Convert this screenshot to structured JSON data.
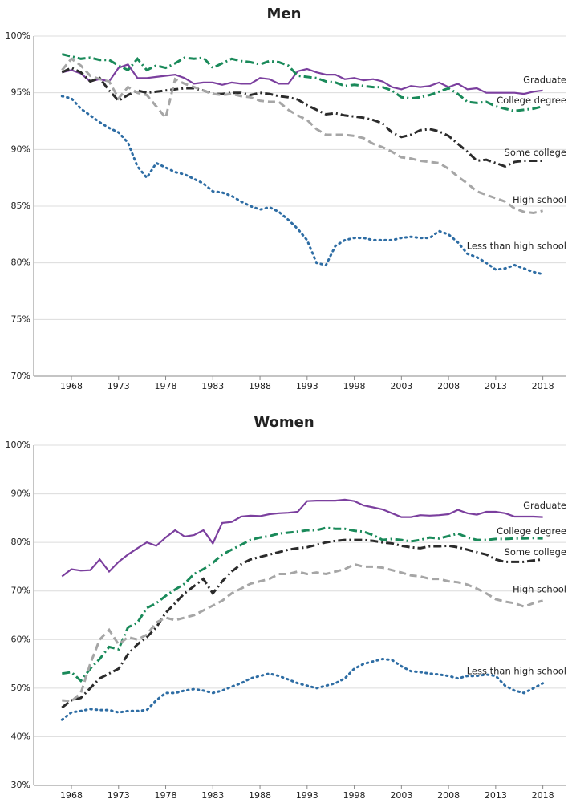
{
  "chart_data": [
    {
      "type": "line",
      "title": "Men",
      "x": [
        1967,
        1968,
        1969,
        1970,
        1971,
        1972,
        1973,
        1974,
        1975,
        1976,
        1977,
        1978,
        1979,
        1980,
        1981,
        1982,
        1983,
        1984,
        1985,
        1986,
        1987,
        1988,
        1989,
        1990,
        1991,
        1992,
        1993,
        1994,
        1995,
        1996,
        1997,
        1998,
        1999,
        2000,
        2001,
        2002,
        2003,
        2004,
        2005,
        2006,
        2007,
        2008,
        2009,
        2010,
        2011,
        2012,
        2013,
        2014,
        2015,
        2016,
        2017,
        2018
      ],
      "xlim": [
        1964,
        2020.5
      ],
      "xticks": [
        1968,
        1973,
        1978,
        1983,
        1988,
        1993,
        1998,
        2003,
        2008,
        2013,
        2018
      ],
      "ylim": [
        70,
        100
      ],
      "yticks": [
        {
          "value": 70,
          "label": "70%"
        },
        {
          "value": 75,
          "label": "75%"
        },
        {
          "value": 80,
          "label": "80%"
        },
        {
          "value": 85,
          "label": "85%"
        },
        {
          "value": 90,
          "label": "90%"
        },
        {
          "value": 95,
          "label": "95%"
        },
        {
          "value": 100,
          "label": "100%"
        }
      ],
      "grid": true,
      "series": [
        {
          "name": "Graduate",
          "color": "#7b3f9e",
          "style": "solid",
          "values": [
            96.8,
            97.0,
            96.7,
            96.0,
            96.2,
            96.0,
            97.2,
            97.5,
            96.3,
            96.3,
            96.4,
            96.5,
            96.6,
            96.3,
            95.8,
            95.9,
            95.9,
            95.7,
            95.9,
            95.8,
            95.8,
            96.3,
            96.2,
            95.8,
            95.8,
            96.9,
            97.1,
            96.8,
            96.6,
            96.6,
            96.2,
            96.3,
            96.1,
            96.2,
            96.0,
            95.5,
            95.3,
            95.6,
            95.5,
            95.6,
            95.9,
            95.5,
            95.8,
            95.3,
            95.4,
            95.0,
            95.0,
            95.0,
            95.0,
            94.9,
            95.1,
            95.2
          ]
        },
        {
          "name": "College degree",
          "color": "#1a8a5a",
          "style": "dashdot",
          "values": [
            98.4,
            98.2,
            98.0,
            98.1,
            97.9,
            97.9,
            97.4,
            97.0,
            98.0,
            97.0,
            97.4,
            97.2,
            97.6,
            98.1,
            98.0,
            98.1,
            97.2,
            97.6,
            98.0,
            97.8,
            97.7,
            97.5,
            97.8,
            97.7,
            97.4,
            96.5,
            96.4,
            96.3,
            96.0,
            95.9,
            95.6,
            95.7,
            95.6,
            95.5,
            95.5,
            95.2,
            94.6,
            94.5,
            94.6,
            94.8,
            95.1,
            95.4,
            94.9,
            94.2,
            94.1,
            94.2,
            93.8,
            93.6,
            93.4,
            93.5,
            93.6,
            93.8
          ]
        },
        {
          "name": "Some college",
          "color": "#2b2b2b",
          "style": "dashdot",
          "values": [
            96.8,
            97.2,
            96.8,
            96.0,
            96.3,
            95.2,
            94.3,
            94.8,
            95.2,
            95.0,
            95.1,
            95.2,
            95.3,
            95.4,
            95.4,
            95.2,
            94.9,
            94.9,
            95.0,
            95.0,
            94.8,
            95.0,
            94.9,
            94.7,
            94.6,
            94.4,
            93.9,
            93.5,
            93.1,
            93.2,
            93.0,
            92.9,
            92.8,
            92.6,
            92.3,
            91.5,
            91.1,
            91.3,
            91.7,
            91.8,
            91.6,
            91.2,
            90.5,
            89.8,
            89.0,
            89.1,
            88.8,
            88.5,
            88.9,
            89.0,
            89.0,
            89.0
          ]
        },
        {
          "name": "High school",
          "color": "#a6a6a6",
          "style": "dashed",
          "values": [
            97.0,
            98.0,
            97.4,
            96.5,
            96.2,
            96.0,
            94.5,
            95.5,
            95.0,
            94.8,
            93.8,
            92.8,
            96.2,
            95.8,
            95.5,
            95.2,
            94.9,
            94.8,
            94.9,
            94.7,
            94.6,
            94.3,
            94.2,
            94.2,
            93.5,
            93.0,
            92.6,
            91.8,
            91.3,
            91.3,
            91.3,
            91.2,
            91.0,
            90.5,
            90.2,
            89.8,
            89.3,
            89.2,
            89.0,
            88.9,
            88.8,
            88.3,
            87.6,
            87.0,
            86.3,
            86.0,
            85.7,
            85.4,
            84.8,
            84.5,
            84.4,
            84.6
          ]
        },
        {
          "name": "Less than high school",
          "color": "#2e6da4",
          "style": "dotted",
          "values": [
            94.7,
            94.5,
            93.6,
            93.0,
            92.4,
            91.9,
            91.5,
            90.6,
            88.5,
            87.5,
            88.8,
            88.4,
            88.0,
            87.8,
            87.4,
            87.0,
            86.3,
            86.2,
            85.9,
            85.4,
            85.0,
            84.7,
            84.9,
            84.5,
            83.8,
            83.0,
            82.0,
            80.0,
            79.8,
            81.5,
            82.0,
            82.2,
            82.2,
            82.0,
            82.0,
            82.0,
            82.2,
            82.3,
            82.2,
            82.2,
            82.8,
            82.5,
            81.8,
            80.8,
            80.5,
            80.0,
            79.4,
            79.5,
            79.8,
            79.5,
            79.2,
            79.0
          ]
        }
      ]
    },
    {
      "type": "line",
      "title": "Women",
      "x": [
        1967,
        1968,
        1969,
        1970,
        1971,
        1972,
        1973,
        1974,
        1975,
        1976,
        1977,
        1978,
        1979,
        1980,
        1981,
        1982,
        1983,
        1984,
        1985,
        1986,
        1987,
        1988,
        1989,
        1990,
        1991,
        1992,
        1993,
        1994,
        1995,
        1996,
        1997,
        1998,
        1999,
        2000,
        2001,
        2002,
        2003,
        2004,
        2005,
        2006,
        2007,
        2008,
        2009,
        2010,
        2011,
        2012,
        2013,
        2014,
        2015,
        2016,
        2017,
        2018
      ],
      "xlim": [
        1964,
        2020.5
      ],
      "xticks": [
        1968,
        1973,
        1978,
        1983,
        1988,
        1993,
        1998,
        2003,
        2008,
        2013,
        2018
      ],
      "ylim": [
        30,
        100
      ],
      "yticks": [
        {
          "value": 30,
          "label": "30%"
        },
        {
          "value": 40,
          "label": "40%"
        },
        {
          "value": 50,
          "label": "50%"
        },
        {
          "value": 60,
          "label": "60%"
        },
        {
          "value": 70,
          "label": "70%"
        },
        {
          "value": 80,
          "label": "80%"
        },
        {
          "value": 90,
          "label": "90%"
        },
        {
          "value": 100,
          "label": "100%"
        }
      ],
      "grid": true,
      "series": [
        {
          "name": "Graduate",
          "color": "#7b3f9e",
          "style": "solid",
          "values": [
            73.0,
            74.5,
            74.2,
            74.3,
            76.5,
            74.0,
            76.0,
            77.5,
            78.8,
            80.0,
            79.3,
            81.0,
            82.5,
            81.2,
            81.5,
            82.5,
            79.8,
            84.0,
            84.2,
            85.3,
            85.5,
            85.4,
            85.8,
            86.0,
            86.1,
            86.3,
            88.5,
            88.6,
            88.6,
            88.6,
            88.8,
            88.5,
            87.6,
            87.2,
            86.8,
            86.0,
            85.2,
            85.2,
            85.6,
            85.5,
            85.6,
            85.8,
            86.7,
            86.0,
            85.7,
            86.3,
            86.3,
            86.0,
            85.3,
            85.3,
            85.3,
            85.2
          ]
        },
        {
          "name": "College degree",
          "color": "#1a8a5a",
          "style": "dashdot",
          "values": [
            53.0,
            53.3,
            51.5,
            54.0,
            56.0,
            58.5,
            58.0,
            62.5,
            63.5,
            66.5,
            67.5,
            69.0,
            70.3,
            71.5,
            73.5,
            74.5,
            75.8,
            77.5,
            78.5,
            79.5,
            80.5,
            81.0,
            81.3,
            81.8,
            82.0,
            82.2,
            82.5,
            82.5,
            83.0,
            82.8,
            82.8,
            82.4,
            82.2,
            81.5,
            80.5,
            80.7,
            80.5,
            80.2,
            80.5,
            81.0,
            80.8,
            81.3,
            81.8,
            81.0,
            80.5,
            80.5,
            80.7,
            80.7,
            80.8,
            80.8,
            80.9,
            80.8
          ]
        },
        {
          "name": "Some college",
          "color": "#2b2b2b",
          "style": "dashdot",
          "values": [
            46.0,
            47.5,
            48.0,
            50.0,
            52.0,
            53.0,
            54.0,
            57.0,
            59.0,
            60.5,
            62.5,
            65.5,
            67.5,
            69.5,
            71.0,
            72.5,
            69.5,
            72.0,
            74.0,
            75.5,
            76.5,
            77.0,
            77.5,
            78.0,
            78.5,
            78.8,
            79.0,
            79.5,
            80.0,
            80.3,
            80.5,
            80.5,
            80.5,
            80.3,
            80.0,
            79.8,
            79.3,
            79.0,
            78.8,
            79.2,
            79.2,
            79.3,
            79.0,
            78.5,
            78.0,
            77.5,
            76.5,
            76.0,
            76.0,
            76.0,
            76.3,
            76.5
          ]
        },
        {
          "name": "High school",
          "color": "#a6a6a6",
          "style": "dashed",
          "values": [
            47.5,
            47.3,
            49.0,
            55.0,
            60.0,
            62.0,
            59.0,
            60.5,
            60.0,
            61.0,
            63.5,
            64.5,
            64.0,
            64.5,
            65.0,
            66.0,
            67.0,
            68.0,
            69.5,
            70.5,
            71.5,
            72.0,
            72.5,
            73.5,
            73.5,
            74.0,
            73.5,
            73.8,
            73.5,
            74.0,
            74.5,
            75.5,
            75.0,
            75.0,
            74.8,
            74.3,
            73.8,
            73.2,
            73.0,
            72.5,
            72.5,
            72.0,
            71.8,
            71.3,
            70.5,
            69.5,
            68.3,
            67.8,
            67.5,
            66.8,
            67.5,
            68.0
          ]
        },
        {
          "name": "Less than high school",
          "color": "#2e6da4",
          "style": "dotted",
          "values": [
            43.5,
            45.0,
            45.3,
            45.7,
            45.5,
            45.5,
            45.0,
            45.3,
            45.3,
            45.5,
            47.5,
            49.0,
            49.0,
            49.5,
            49.8,
            49.5,
            49.0,
            49.5,
            50.3,
            51.0,
            52.0,
            52.5,
            53.0,
            52.5,
            51.8,
            51.0,
            50.5,
            50.0,
            50.5,
            51.0,
            52.0,
            54.0,
            55.0,
            55.5,
            56.0,
            55.8,
            54.5,
            53.5,
            53.3,
            53.0,
            52.8,
            52.5,
            52.0,
            52.5,
            52.5,
            52.8,
            52.5,
            50.5,
            49.5,
            49.0,
            50.0,
            51.0
          ]
        }
      ]
    }
  ]
}
